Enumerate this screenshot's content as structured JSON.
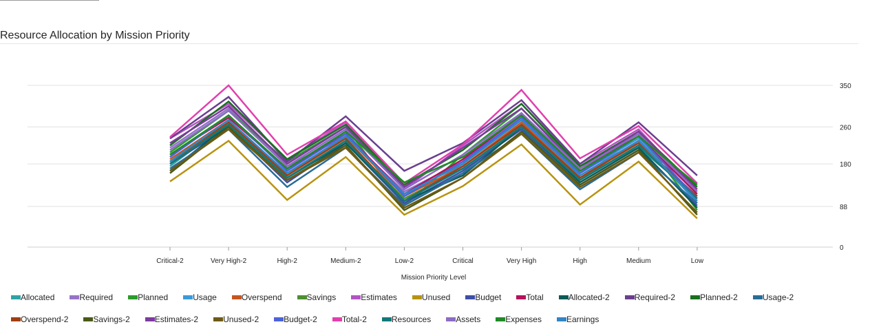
{
  "chart_title": "Resource Allocation by Mission Priority",
  "chart_data": {
    "type": "line",
    "title": "Resource Allocation by Mission Priority",
    "xlabel": "Mission Priority Level",
    "ylabel": "",
    "categories": [
      "Critical-2",
      "Very High-2",
      "High-2",
      "Medium-2",
      "Low-2",
      "Critical",
      "Very High",
      "High",
      "Medium",
      "Low"
    ],
    "y_ticks": [
      0,
      88,
      180,
      260,
      350
    ],
    "ylim": [
      0,
      350
    ],
    "y_axis_position": "right",
    "grid": true,
    "legend_position": "bottom",
    "series": [
      {
        "name": "Allocated",
        "color": "#2ea3a5",
        "values": [
          175,
          270,
          160,
          235,
          95,
          160,
          265,
          150,
          215,
          110
        ]
      },
      {
        "name": "Required",
        "color": "#9673c9",
        "values": [
          215,
          300,
          175,
          240,
          120,
          185,
          290,
          165,
          225,
          125
        ]
      },
      {
        "name": "Planned",
        "color": "#2b9c2b",
        "values": [
          205,
          295,
          185,
          260,
          90,
          200,
          300,
          175,
          245,
          80
        ]
      },
      {
        "name": "Usage",
        "color": "#3c9ad9",
        "values": [
          195,
          285,
          165,
          250,
          100,
          180,
          280,
          160,
          235,
          95
        ]
      },
      {
        "name": "Overspend",
        "color": "#c75521",
        "values": [
          190,
          275,
          155,
          240,
          110,
          175,
          270,
          150,
          230,
          100
        ]
      },
      {
        "name": "Savings",
        "color": "#4e8f2f",
        "values": [
          185,
          265,
          150,
          230,
          105,
          170,
          260,
          145,
          220,
          105
        ]
      },
      {
        "name": "Estimates",
        "color": "#b354c4",
        "values": [
          235,
          310,
          190,
          270,
          125,
          220,
          310,
          180,
          255,
          120
        ]
      },
      {
        "name": "Unused",
        "color": "#b8930f",
        "values": [
          142,
          230,
          102,
          195,
          70,
          132,
          222,
          92,
          185,
          62
        ]
      },
      {
        "name": "Budget",
        "color": "#3e4fa8",
        "values": [
          180,
          260,
          140,
          225,
          95,
          165,
          255,
          135,
          210,
          90
        ]
      },
      {
        "name": "Total",
        "color": "#b3135c",
        "values": [
          200,
          280,
          170,
          245,
          115,
          190,
          285,
          170,
          240,
          115
        ]
      },
      {
        "name": "Allocated-2",
        "color": "#0e5a58",
        "values": [
          165,
          265,
          150,
          225,
          100,
          155,
          260,
          140,
          215,
          85
        ]
      },
      {
        "name": "Required-2",
        "color": "#6a3f8f",
        "values": [
          235,
          325,
          185,
          283,
          165,
          225,
          318,
          180,
          270,
          155
        ]
      },
      {
        "name": "Planned-2",
        "color": "#17711d",
        "values": [
          220,
          315,
          190,
          265,
          135,
          210,
          310,
          175,
          250,
          130
        ]
      },
      {
        "name": "Usage-2",
        "color": "#2a6c98",
        "values": [
          170,
          255,
          130,
          215,
          90,
          160,
          245,
          125,
          205,
          95
        ]
      },
      {
        "name": "Overspend-2",
        "color": "#9e3f14",
        "values": [
          185,
          270,
          155,
          235,
          100,
          175,
          265,
          150,
          225,
          110
        ]
      },
      {
        "name": "Savings-2",
        "color": "#4a5a16",
        "values": [
          160,
          260,
          145,
          220,
          80,
          150,
          250,
          135,
          210,
          70
        ]
      },
      {
        "name": "Estimates-2",
        "color": "#7e3a9e",
        "values": [
          225,
          305,
          180,
          260,
          130,
          215,
          300,
          170,
          250,
          125
        ]
      },
      {
        "name": "Unused-2",
        "color": "#6e5a13",
        "values": [
          165,
          255,
          145,
          215,
          85,
          150,
          245,
          130,
          205,
          75
        ]
      },
      {
        "name": "Budget-2",
        "color": "#4d62d9",
        "values": [
          195,
          285,
          165,
          245,
          110,
          185,
          280,
          160,
          240,
          105
        ]
      },
      {
        "name": "Total-2",
        "color": "#e23fae",
        "values": [
          238,
          350,
          200,
          272,
          138,
          222,
          340,
          192,
          262,
          138
        ]
      },
      {
        "name": "Resources",
        "color": "#13787a",
        "values": [
          180,
          265,
          150,
          230,
          100,
          170,
          260,
          145,
          220,
          105
        ]
      },
      {
        "name": "Assets",
        "color": "#8c6cc4",
        "values": [
          210,
          295,
          175,
          255,
          125,
          200,
          290,
          170,
          245,
          120
        ]
      },
      {
        "name": "Expenses",
        "color": "#1f8a26",
        "values": [
          200,
          285,
          170,
          250,
          140,
          195,
          285,
          165,
          240,
          135
        ]
      },
      {
        "name": "Earnings",
        "color": "#2f86c6",
        "values": [
          185,
          275,
          160,
          240,
          115,
          180,
          275,
          155,
          230,
          100
        ]
      }
    ]
  }
}
